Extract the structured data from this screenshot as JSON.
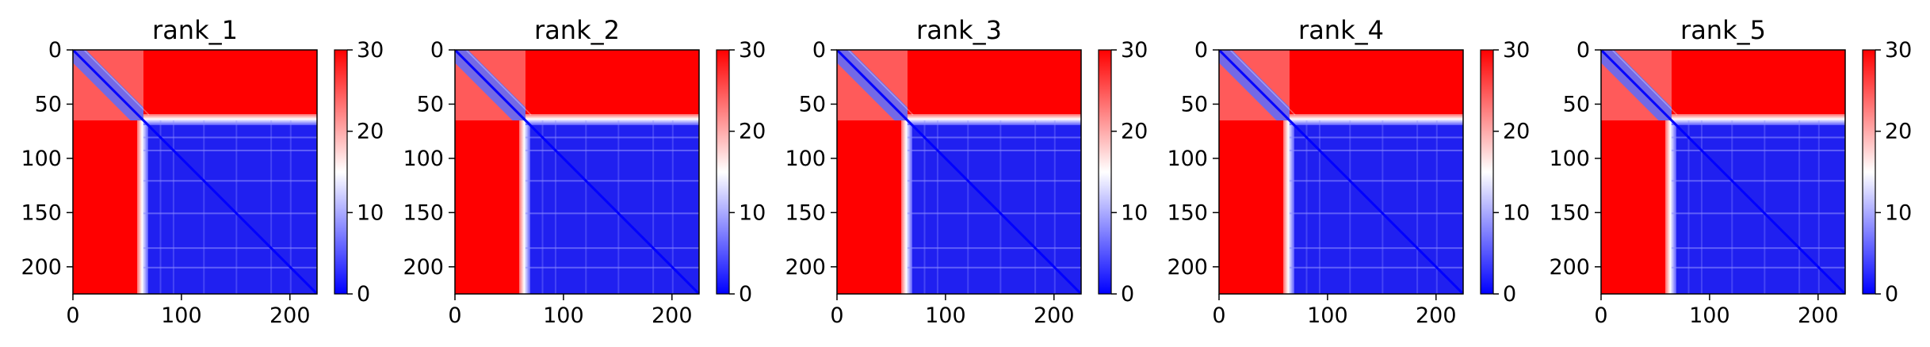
{
  "colors": {
    "low": "#0000ff",
    "mid": "#ffffff",
    "high": "#ff0000",
    "axis": "#000000"
  },
  "chart_data": [
    {
      "type": "heatmap",
      "title": "rank_1",
      "matrix_size": 225,
      "xlim": [
        0,
        225
      ],
      "ylim": [
        225,
        0
      ],
      "x_ticks": [
        0,
        100,
        200
      ],
      "x_tick_labels": [
        "0",
        "100",
        "200"
      ],
      "y_ticks": [
        0,
        50,
        100,
        150,
        200
      ],
      "y_tick_labels": [
        "0",
        "50",
        "100",
        "150",
        "200"
      ],
      "colorbar": {
        "min": 0,
        "max": 30,
        "ticks": [
          0,
          10,
          20,
          30
        ],
        "tick_labels": [
          "0",
          "10",
          "20",
          "30"
        ]
      },
      "structure": {
        "domain_a": [
          0,
          65
        ],
        "domain_b": [
          65,
          225
        ],
        "intra_value": 3,
        "inter_value": 30,
        "diagonal_value": 0
      }
    },
    {
      "type": "heatmap",
      "title": "rank_2",
      "matrix_size": 225,
      "xlim": [
        0,
        225
      ],
      "ylim": [
        225,
        0
      ],
      "x_ticks": [
        0,
        100,
        200
      ],
      "x_tick_labels": [
        "0",
        "100",
        "200"
      ],
      "y_ticks": [
        0,
        50,
        100,
        150,
        200
      ],
      "y_tick_labels": [
        "0",
        "50",
        "100",
        "150",
        "200"
      ],
      "colorbar": {
        "min": 0,
        "max": 30,
        "ticks": [
          0,
          10,
          20,
          30
        ],
        "tick_labels": [
          "0",
          "10",
          "20",
          "30"
        ]
      },
      "structure": {
        "domain_a": [
          0,
          65
        ],
        "domain_b": [
          65,
          225
        ],
        "intra_value": 3,
        "inter_value": 30,
        "diagonal_value": 0
      }
    },
    {
      "type": "heatmap",
      "title": "rank_3",
      "matrix_size": 225,
      "xlim": [
        0,
        225
      ],
      "ylim": [
        225,
        0
      ],
      "x_ticks": [
        0,
        100,
        200
      ],
      "x_tick_labels": [
        "0",
        "100",
        "200"
      ],
      "y_ticks": [
        0,
        50,
        100,
        150,
        200
      ],
      "y_tick_labels": [
        "0",
        "50",
        "100",
        "150",
        "200"
      ],
      "colorbar": {
        "min": 0,
        "max": 30,
        "ticks": [
          0,
          10,
          20,
          30
        ],
        "tick_labels": [
          "0",
          "10",
          "20",
          "30"
        ]
      },
      "structure": {
        "domain_a": [
          0,
          65
        ],
        "domain_b": [
          65,
          225
        ],
        "intra_value": 3,
        "inter_value": 30,
        "diagonal_value": 0
      }
    },
    {
      "type": "heatmap",
      "title": "rank_4",
      "matrix_size": 225,
      "xlim": [
        0,
        225
      ],
      "ylim": [
        225,
        0
      ],
      "x_ticks": [
        0,
        100,
        200
      ],
      "x_tick_labels": [
        "0",
        "100",
        "200"
      ],
      "y_ticks": [
        0,
        50,
        100,
        150,
        200
      ],
      "y_tick_labels": [
        "0",
        "50",
        "100",
        "150",
        "200"
      ],
      "colorbar": {
        "min": 0,
        "max": 30,
        "ticks": [
          0,
          10,
          20,
          30
        ],
        "tick_labels": [
          "0",
          "10",
          "20",
          "30"
        ]
      },
      "structure": {
        "domain_a": [
          0,
          65
        ],
        "domain_b": [
          65,
          225
        ],
        "intra_value": 3,
        "inter_value": 30,
        "diagonal_value": 0
      }
    },
    {
      "type": "heatmap",
      "title": "rank_5",
      "matrix_size": 225,
      "xlim": [
        0,
        225
      ],
      "ylim": [
        225,
        0
      ],
      "x_ticks": [
        0,
        100,
        200
      ],
      "x_tick_labels": [
        "0",
        "100",
        "200"
      ],
      "y_ticks": [
        0,
        50,
        100,
        150,
        200
      ],
      "y_tick_labels": [
        "0",
        "50",
        "100",
        "150",
        "200"
      ],
      "colorbar": {
        "min": 0,
        "max": 30,
        "ticks": [
          0,
          10,
          20,
          30
        ],
        "tick_labels": [
          "0",
          "10",
          "20",
          "30"
        ]
      },
      "structure": {
        "domain_a": [
          0,
          65
        ],
        "domain_b": [
          65,
          225
        ],
        "intra_value": 3,
        "inter_value": 30,
        "diagonal_value": 0
      }
    }
  ]
}
